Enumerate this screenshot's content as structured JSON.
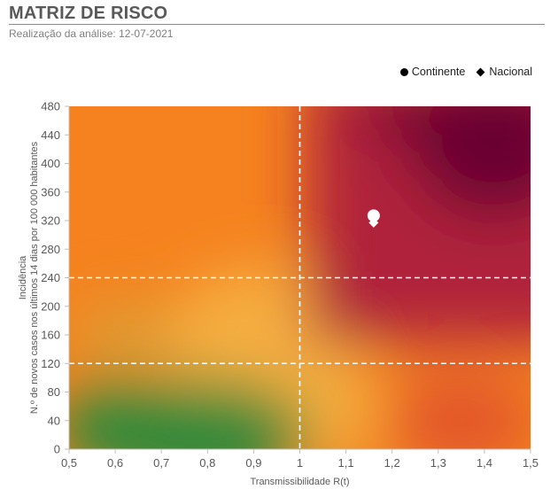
{
  "header": {
    "title": "MATRIZ DE RISCO",
    "subtitle": "Realização da análise: 12-07-2021"
  },
  "legend": {
    "items": [
      {
        "label": "Continente",
        "marker": "circle"
      },
      {
        "label": "Nacional",
        "marker": "diamond"
      }
    ]
  },
  "chart_data": {
    "type": "scatter",
    "title": "MATRIZ DE RISCO",
    "subtitle": "Realização da análise: 12-07-2021",
    "xlabel": "Transmissibilidade  R(t)",
    "ylabel_line1": "Incidência",
    "ylabel_line2": "N.º de novos  casos nos últimos 14 dias por 100 000 habitantes",
    "xlim": [
      0.5,
      1.5
    ],
    "ylim": [
      0,
      480
    ],
    "x_ticks": [
      "0,5",
      "0,6",
      "0,7",
      "0,8",
      "0,9",
      "1",
      "1,1",
      "1,2",
      "1,3",
      "1,4",
      "1,5"
    ],
    "y_ticks": [
      "0",
      "40",
      "80",
      "120",
      "160",
      "200",
      "240",
      "280",
      "320",
      "360",
      "400",
      "440",
      "480"
    ],
    "x_tick_values": [
      0.5,
      0.6,
      0.7,
      0.8,
      0.9,
      1.0,
      1.1,
      1.2,
      1.3,
      1.4,
      1.5
    ],
    "y_tick_values": [
      0,
      40,
      80,
      120,
      160,
      200,
      240,
      280,
      320,
      360,
      400,
      440,
      480
    ],
    "reference_lines": {
      "x": [
        1.0
      ],
      "y": [
        120,
        240
      ]
    },
    "legend_position": "top-right",
    "grid": false,
    "series": [
      {
        "name": "Continente",
        "marker": "circle",
        "color": "#ffffff",
        "x": [
          1.16
        ],
        "y": [
          327
        ]
      },
      {
        "name": "Nacional",
        "marker": "diamond",
        "color": "#ffffff",
        "x": [
          1.16
        ],
        "y": [
          317
        ]
      }
    ],
    "background_colors": {
      "green": "#2f8a3b",
      "yellow": "#f5b040",
      "orange": "#f5821f",
      "red": "#b0203a",
      "dark": "#6b0033"
    }
  }
}
